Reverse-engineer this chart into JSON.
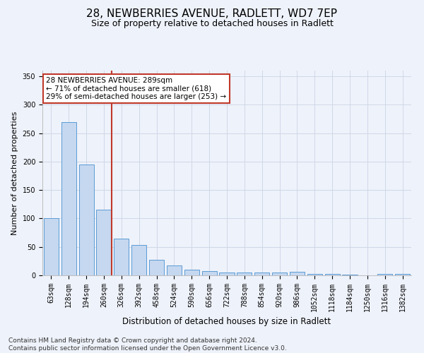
{
  "title": "28, NEWBERRIES AVENUE, RADLETT, WD7 7EP",
  "subtitle": "Size of property relative to detached houses in Radlett",
  "xlabel": "Distribution of detached houses by size in Radlett",
  "ylabel": "Number of detached properties",
  "bar_labels": [
    "63sqm",
    "128sqm",
    "194sqm",
    "260sqm",
    "326sqm",
    "392sqm",
    "458sqm",
    "524sqm",
    "590sqm",
    "656sqm",
    "722sqm",
    "788sqm",
    "854sqm",
    "920sqm",
    "986sqm",
    "1052sqm",
    "1118sqm",
    "1184sqm",
    "1250sqm",
    "1316sqm",
    "1382sqm"
  ],
  "bar_values": [
    100,
    270,
    195,
    115,
    65,
    53,
    27,
    17,
    10,
    8,
    5,
    5,
    5,
    5,
    6,
    2,
    2,
    1,
    0,
    3,
    2
  ],
  "bar_color": "#c5d8f0",
  "bar_edge_color": "#5b9bd5",
  "vline_x_index": 3,
  "vline_color": "#c0392b",
  "annotation_text": "28 NEWBERRIES AVENUE: 289sqm\n← 71% of detached houses are smaller (618)\n29% of semi-detached houses are larger (253) →",
  "annotation_box_color": "#ffffff",
  "annotation_box_edge_color": "#c0392b",
  "annotation_text_color": "#000000",
  "ylim": [
    0,
    360
  ],
  "yticks": [
    0,
    50,
    100,
    150,
    200,
    250,
    300,
    350
  ],
  "grid_color": "#d0d8e8",
  "background_color": "#eef2fa",
  "footnote": "Contains HM Land Registry data © Crown copyright and database right 2024.\nContains public sector information licensed under the Open Government Licence v3.0.",
  "title_fontsize": 11,
  "subtitle_fontsize": 9,
  "xlabel_fontsize": 8.5,
  "ylabel_fontsize": 8,
  "tick_fontsize": 7,
  "annotation_fontsize": 7.5,
  "footnote_fontsize": 6.5
}
